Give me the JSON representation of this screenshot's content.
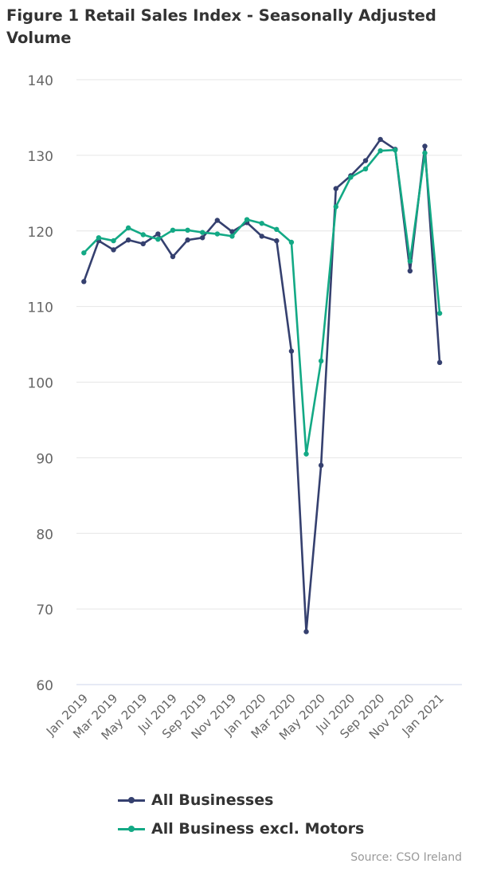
{
  "title": "Figure 1 Retail Sales Index - Seasonally Adjusted Volume",
  "source": "Source: CSO Ireland",
  "colors": {
    "all_businesses": "#35406f",
    "excl_motors": "#13a985",
    "grid": "#e6e6e6",
    "tick_text": "#666666"
  },
  "chart_data": {
    "type": "line",
    "title": "Figure 1 Retail Sales Index - Seasonally Adjusted Volume",
    "xlabel": "",
    "ylabel": "",
    "ylim": [
      60,
      140
    ],
    "yticks": [
      60,
      70,
      80,
      90,
      100,
      110,
      120,
      130,
      140
    ],
    "grid": true,
    "legend_position": "bottom",
    "categories": [
      "Jan 2019",
      "Feb 2019",
      "Mar 2019",
      "Apr 2019",
      "May 2019",
      "Jun 2019",
      "Jul 2019",
      "Aug 2019",
      "Sep 2019",
      "Oct 2019",
      "Nov 2019",
      "Dec 2019",
      "Jan 2020",
      "Feb 2020",
      "Mar 2020",
      "Apr 2020",
      "May 2020",
      "Jun 2020",
      "Jul 2020",
      "Aug 2020",
      "Sep 2020",
      "Oct 2020",
      "Nov 2020",
      "Dec 2020",
      "Jan 2021",
      "Feb 2021"
    ],
    "tick_labels": [
      "Jan 2019",
      "Mar 2019",
      "May 2019",
      "Jul 2019",
      "Sep 2019",
      "Nov 2019",
      "Jan 2020",
      "Mar 2020",
      "May 2020",
      "Jul 2020",
      "Sep 2020",
      "Nov 2020",
      "Jan 2021"
    ],
    "series": [
      {
        "name": "All Businesses",
        "color": "#35406f",
        "values": [
          113.3,
          118.7,
          117.5,
          118.8,
          118.3,
          119.6,
          116.6,
          118.8,
          119.1,
          121.4,
          119.9,
          121.1,
          119.3,
          118.7,
          104.1,
          67.0,
          89.0,
          125.6,
          127.3,
          129.3,
          132.1,
          130.8,
          114.7,
          131.2,
          102.6,
          null
        ]
      },
      {
        "name": "All Business excl. Motors",
        "color": "#13a985",
        "values": [
          117.1,
          119.1,
          118.7,
          120.4,
          119.5,
          118.9,
          120.1,
          120.1,
          119.8,
          119.6,
          119.3,
          121.5,
          121.0,
          120.2,
          118.5,
          90.5,
          102.8,
          123.2,
          127.1,
          128.2,
          130.6,
          130.7,
          116.0,
          130.3,
          109.1,
          null
        ]
      }
    ]
  }
}
